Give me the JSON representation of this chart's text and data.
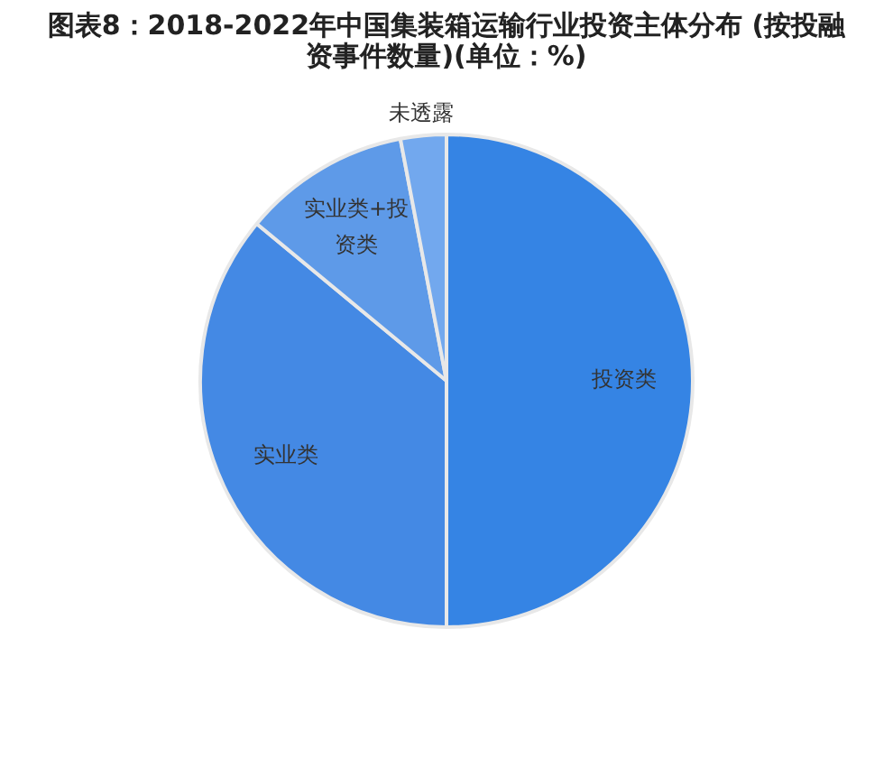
{
  "chart_data": {
    "type": "pie",
    "title": "图表8：2018-2022年中国集装箱运输行业投资主体分布 (按投融资事件数量)(单位：%)",
    "categories": [
      "投资类",
      "实业类",
      "实业类+投资类",
      "未透露"
    ],
    "values": [
      50,
      36,
      11,
      3
    ],
    "colors": [
      "#3584e4",
      "#4489e4",
      "#5e9ae8",
      "#72a8ee"
    ],
    "legend": false
  }
}
